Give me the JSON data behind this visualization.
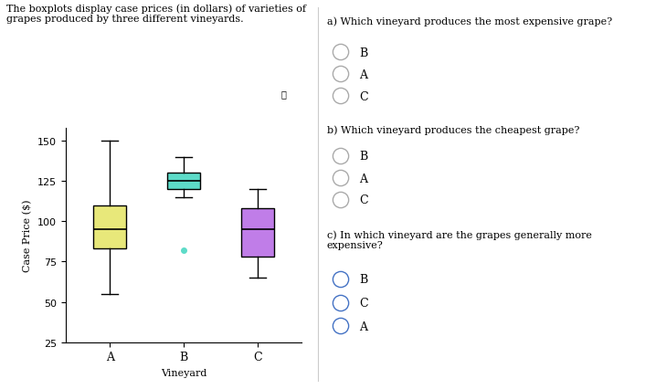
{
  "vineyards": [
    "A",
    "B",
    "C"
  ],
  "box_A": {
    "whislo": 55,
    "q1": 83,
    "med": 95,
    "q3": 110,
    "whishi": 150,
    "fliers": [],
    "color": "#e8e87a"
  },
  "box_B": {
    "whislo": 115,
    "q1": 120,
    "med": 125,
    "q3": 130,
    "whishi": 140,
    "fliers": [
      82
    ],
    "color": "#5ddbc8"
  },
  "box_C": {
    "whislo": 65,
    "q1": 78,
    "med": 95,
    "q3": 108,
    "whishi": 120,
    "fliers": [],
    "color": "#c07de8"
  },
  "ylabel": "Case Price ($)",
  "xlabel": "Vineyard",
  "ylim": [
    25,
    158
  ],
  "yticks": [
    25,
    50,
    75,
    100,
    125,
    150
  ],
  "background_color": "#ffffff",
  "fig_width": 7.18,
  "fig_height": 4.27,
  "dpi": 100
}
